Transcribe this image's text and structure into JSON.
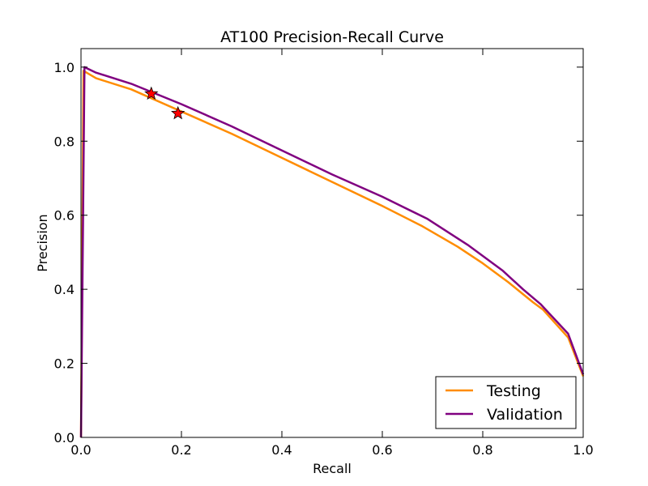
{
  "chart_data": {
    "type": "line",
    "title": "AT100 Precision-Recall Curve",
    "xlabel": "Recall",
    "ylabel": "Precision",
    "xlim": [
      0.0,
      1.0
    ],
    "ylim": [
      0.0,
      1.05
    ],
    "xticks": [
      "0.0",
      "0.2",
      "0.4",
      "0.6",
      "0.8",
      "1.0"
    ],
    "yticks": [
      "0.0",
      "0.2",
      "0.4",
      "0.6",
      "0.8",
      "1.0"
    ],
    "grid": false,
    "legend": "lower-right",
    "series": [
      {
        "name": "Testing",
        "color": "#ff8c00",
        "x": [
          0.0,
          0.005,
          0.03,
          0.1,
          0.2,
          0.3,
          0.4,
          0.5,
          0.6,
          0.68,
          0.75,
          0.8,
          0.85,
          0.9,
          0.92,
          0.97,
          1.0
        ],
        "y": [
          0.0,
          0.99,
          0.97,
          0.94,
          0.88,
          0.82,
          0.755,
          0.69,
          0.625,
          0.57,
          0.515,
          0.47,
          0.42,
          0.365,
          0.345,
          0.27,
          0.165
        ]
      },
      {
        "name": "Validation",
        "color": "#800080",
        "x": [
          0.0,
          0.007,
          0.03,
          0.1,
          0.2,
          0.3,
          0.4,
          0.5,
          0.6,
          0.69,
          0.77,
          0.84,
          0.88,
          0.915,
          0.97,
          1.0
        ],
        "y": [
          0.0,
          1.0,
          0.985,
          0.955,
          0.9,
          0.84,
          0.775,
          0.71,
          0.65,
          0.59,
          0.52,
          0.45,
          0.4,
          0.36,
          0.28,
          0.17
        ]
      }
    ],
    "markers": [
      {
        "x": 0.14,
        "y": 0.928,
        "shape": "star",
        "color": "#ff0000"
      },
      {
        "x": 0.193,
        "y": 0.875,
        "shape": "star",
        "color": "#ff0000"
      }
    ]
  }
}
